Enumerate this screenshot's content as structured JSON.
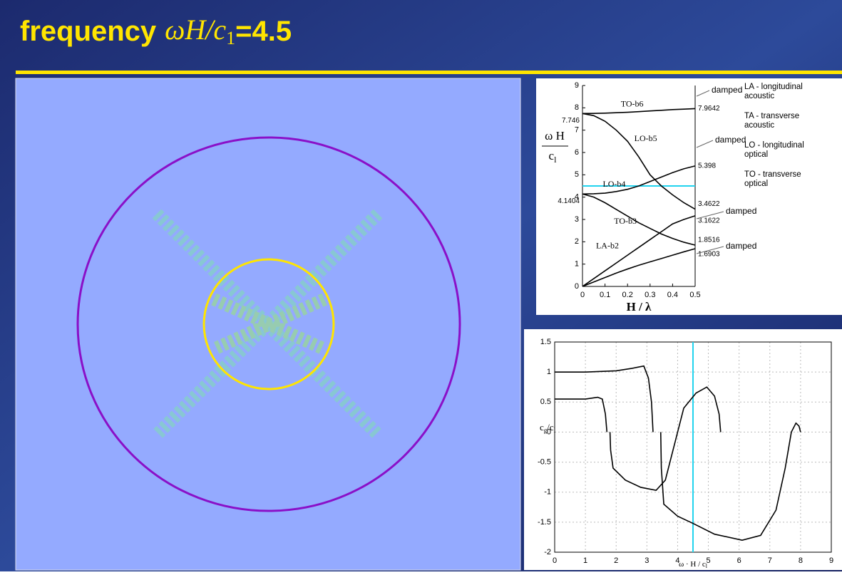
{
  "title": {
    "word": "frequency",
    "math": "ωH/c",
    "sub": "1",
    "rest": "=4.5"
  },
  "chart_data": [
    {
      "type": "line",
      "x": [
        0,
        0.05,
        0.1,
        0.15,
        0.2,
        0.25,
        0.3,
        0.35,
        0.4,
        0.45,
        0.5
      ],
      "xlim": [
        0,
        0.5
      ],
      "ylim": [
        0,
        9
      ],
      "xticks": [
        0,
        0.1,
        0.2,
        0.3,
        0.4,
        0.5
      ],
      "yticks": [
        0,
        1,
        2,
        3,
        4,
        5,
        6,
        7,
        8,
        9
      ],
      "grid": false,
      "xlabel": "H / λ",
      "ylabel": {
        "top": "ω H",
        "bottom": "c",
        "sub": "l"
      },
      "hline": {
        "value": 4.5,
        "color": "#22d3ee"
      },
      "series": [
        {
          "name": "TO-b6",
          "color": "#000000",
          "values": [
            7.746,
            7.75,
            7.76,
            7.78,
            7.8,
            7.83,
            7.86,
            7.89,
            7.92,
            7.94,
            7.9642
          ],
          "value_labels": [
            "7.746",
            null,
            null,
            null,
            null,
            null,
            null,
            null,
            null,
            null,
            "7.9642"
          ]
        },
        {
          "name": "LO-b5",
          "color": "#000000",
          "values": [
            7.746,
            7.65,
            7.4,
            7.0,
            6.5,
            5.8,
            5.0,
            4.5,
            4.1,
            3.75,
            3.4622
          ],
          "value_labels": [
            null,
            null,
            null,
            null,
            null,
            null,
            null,
            null,
            null,
            null,
            "3.4622"
          ]
        },
        {
          "name": "LO-b4",
          "color": "#000000",
          "values": [
            4.1404,
            4.15,
            4.18,
            4.25,
            4.35,
            4.5,
            4.7,
            4.9,
            5.1,
            5.27,
            5.398
          ],
          "value_labels": [
            "4.1404",
            null,
            null,
            null,
            null,
            null,
            null,
            null,
            null,
            null,
            "5.398"
          ]
        },
        {
          "name": "TO-b3",
          "color": "#000000",
          "values": [
            4.1404,
            4.0,
            3.75,
            3.45,
            3.15,
            2.85,
            2.6,
            2.35,
            2.15,
            1.98,
            1.8516
          ],
          "value_labels": [
            null,
            null,
            null,
            null,
            null,
            null,
            null,
            null,
            null,
            null,
            "1.8516"
          ]
        },
        {
          "color": "#000000",
          "values": [
            0,
            0.35,
            0.7,
            1.05,
            1.4,
            1.75,
            2.1,
            2.45,
            2.8,
            3.0,
            3.1622
          ],
          "value_labels": [
            null,
            null,
            null,
            null,
            null,
            null,
            null,
            null,
            null,
            null,
            "3.1622"
          ]
        },
        {
          "name": "LA-b2",
          "color": "#000000",
          "values": [
            0,
            0.2,
            0.4,
            0.6,
            0.78,
            0.95,
            1.1,
            1.25,
            1.4,
            1.55,
            1.6903
          ],
          "value_labels": [
            null,
            null,
            null,
            null,
            null,
            null,
            null,
            null,
            null,
            null,
            "1.6903"
          ]
        }
      ],
      "annotations": [
        "damped",
        "damped",
        "damped",
        "damped"
      ],
      "notes": [
        [
          "LA - longitudinal",
          "acoustic"
        ],
        [
          "TA - transverse",
          "acoustic"
        ],
        [
          "LO - longitudinal",
          "optical"
        ],
        [
          "TO - transverse",
          "optical"
        ]
      ]
    },
    {
      "type": "line",
      "xlim": [
        0,
        9
      ],
      "ylim": [
        -2,
        1.5
      ],
      "xticks": [
        0,
        1,
        2,
        3,
        4,
        5,
        6,
        7,
        8,
        9
      ],
      "yticks": [
        -2,
        -1.5,
        -1,
        -0.5,
        0,
        0.5,
        1,
        1.5
      ],
      "grid": true,
      "xlabel": {
        "main": "ω · H / c",
        "sub": "l"
      },
      "ylabel": {
        "a": "c",
        "asub": "g",
        "b": "/c",
        "bsub": "l"
      },
      "vline": {
        "value": 4.5,
        "color": "#22d3ee"
      },
      "series": [
        {
          "color": "#000000",
          "x": [
            0,
            1,
            2,
            2.5,
            2.9,
            3.05,
            3.15,
            3.2
          ],
          "values": [
            1,
            1,
            1.02,
            1.06,
            1.1,
            0.9,
            0.5,
            0
          ]
        },
        {
          "color": "#000000",
          "x": [
            0,
            1,
            1.4,
            1.55,
            1.65,
            1.7
          ],
          "values": [
            0.55,
            0.55,
            0.58,
            0.55,
            0.3,
            0
          ]
        },
        {
          "color": "#000000",
          "x": [
            1.8,
            1.82,
            1.9,
            2.3,
            2.8,
            3.3,
            3.6,
            3.9,
            4.2,
            4.6,
            4.95,
            5.2,
            5.35,
            5.4
          ],
          "values": [
            0,
            -0.3,
            -0.6,
            -0.8,
            -0.92,
            -0.97,
            -0.8,
            -0.2,
            0.4,
            0.65,
            0.75,
            0.6,
            0.3,
            0
          ]
        },
        {
          "color": "#000000",
          "x": [
            3.45,
            3.47,
            3.55,
            4,
            4.5,
            5.2,
            6.1,
            6.7,
            7.2,
            7.5,
            7.7,
            7.85,
            7.95,
            8.0
          ],
          "values": [
            0,
            -0.6,
            -1.2,
            -1.4,
            -1.52,
            -1.7,
            -1.8,
            -1.72,
            -1.3,
            -0.6,
            0,
            0.15,
            0.1,
            0
          ]
        }
      ]
    }
  ]
}
